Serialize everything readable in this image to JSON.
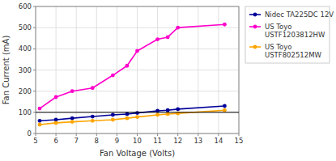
{
  "chart_data": {
    "type": "line",
    "xlabel": "Fan Voltage (Volts)",
    "ylabel": "Fan Current (mA)",
    "x": [
      5.2,
      6.0,
      6.8,
      7.8,
      8.8,
      9.5,
      10.0,
      11.0,
      11.5,
      12.0,
      14.3
    ],
    "series": [
      {
        "name": "Nidec TA225DC 12V",
        "color": "#000099",
        "marker": "circle",
        "values": [
          60,
          65,
          72,
          80,
          88,
          92,
          97,
          107,
          110,
          115,
          130
        ]
      },
      {
        "name": "US Toyo\nUSTF1203812HW",
        "color": "#FF00CC",
        "marker": "circle",
        "values": [
          118,
          172,
          200,
          215,
          275,
          320,
          390,
          445,
          455,
          500,
          515
        ]
      },
      {
        "name": "US Toyo\nUSTF802512MW",
        "color": "#FFA500",
        "marker": "circle",
        "values": [
          42,
          50,
          55,
          60,
          65,
          72,
          78,
          88,
          92,
          95,
          110
        ]
      }
    ],
    "xlim": [
      5,
      15
    ],
    "ylim": [
      0,
      600
    ],
    "xticks": [
      5,
      6,
      7,
      8,
      9,
      10,
      11,
      12,
      13,
      14,
      15
    ],
    "yticks": [
      0,
      100,
      200,
      300,
      400,
      500,
      600
    ],
    "hline": 100,
    "grid": true,
    "legend": "right"
  }
}
